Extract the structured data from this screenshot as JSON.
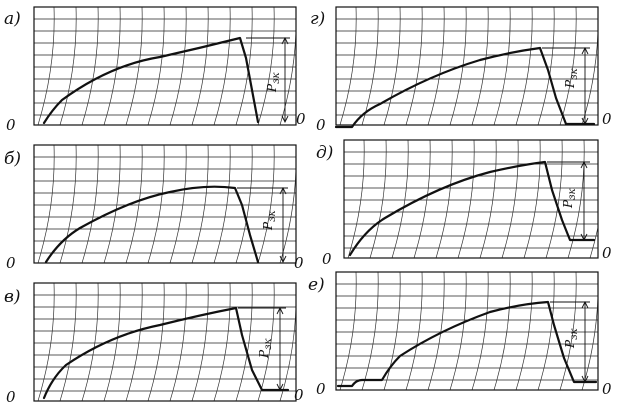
{
  "panels": [
    {
      "label": "а)",
      "zero_left": "0",
      "zero_right": "0",
      "dim_label": "Р",
      "dim_sub": "зк"
    },
    {
      "label": "б)",
      "zero_left": "0",
      "zero_right": "0",
      "dim_label": "Р",
      "dim_sub": "зк"
    },
    {
      "label": "в)",
      "zero_left": "0",
      "zero_right": "0",
      "dim_label": "Р",
      "dim_sub": "зк"
    },
    {
      "label": "г)",
      "zero_left": "0",
      "zero_right": "0",
      "dim_label": "Р",
      "dim_sub": "зк"
    },
    {
      "label": "д)",
      "zero_left": "0",
      "zero_right": "0",
      "dim_label": "Р",
      "dim_sub": "зк"
    },
    {
      "label": "е)",
      "zero_left": "0",
      "zero_right": "0",
      "dim_label": "Р",
      "dim_sub": "зк"
    }
  ]
}
